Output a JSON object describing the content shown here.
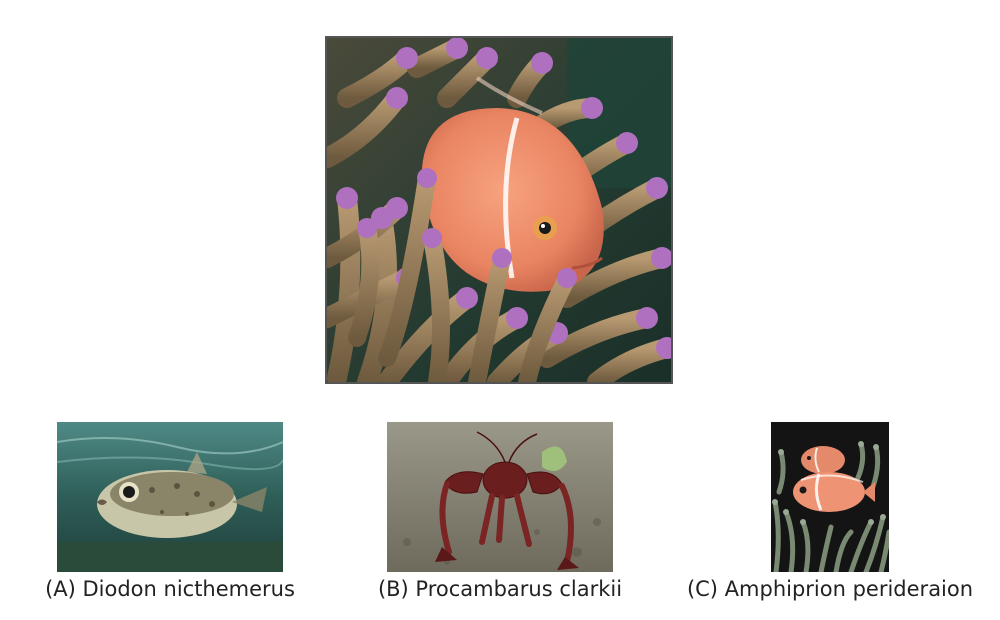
{
  "question": {
    "main_image": {
      "icon": "anemonefish-in-anemone-photo"
    }
  },
  "options": [
    {
      "icon": "porcupinefish-photo",
      "label": "(A) Diodon nicthemerus"
    },
    {
      "icon": "crayfish-photo",
      "label": "(B) Procambarus clarkii"
    },
    {
      "icon": "pink-anemonefish-pair-photo",
      "label": "(C) Amphiprion perideraion"
    }
  ]
}
